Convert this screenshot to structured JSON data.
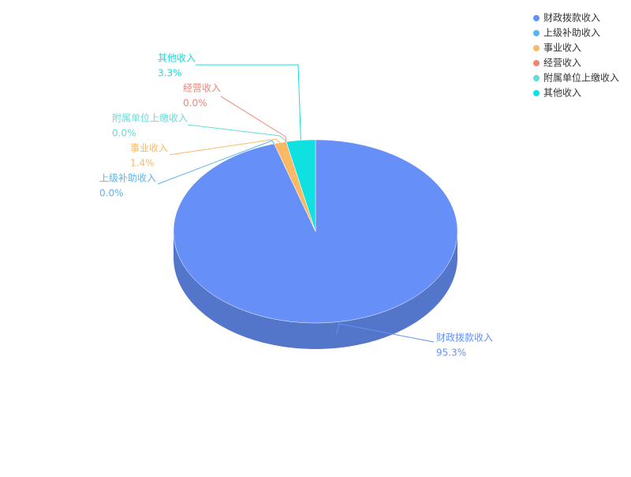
{
  "chart_data": {
    "type": "pie",
    "categories": [
      "财政拨款收入",
      "上级补助收入",
      "事业收入",
      "经营收入",
      "附属单位上缴收入",
      "其他收入"
    ],
    "values": [
      95.3,
      0.0,
      1.4,
      0.0,
      0.0,
      3.3
    ],
    "value_labels": [
      "95.3%",
      "0.0%",
      "1.4%",
      "0.0%",
      "0.0%",
      "3.3%"
    ],
    "colors": [
      "#6690f7",
      "#5ab4ee",
      "#fbb965",
      "#f08577",
      "#64dcd6",
      "#0fe0e0"
    ],
    "legend": "top-right"
  }
}
